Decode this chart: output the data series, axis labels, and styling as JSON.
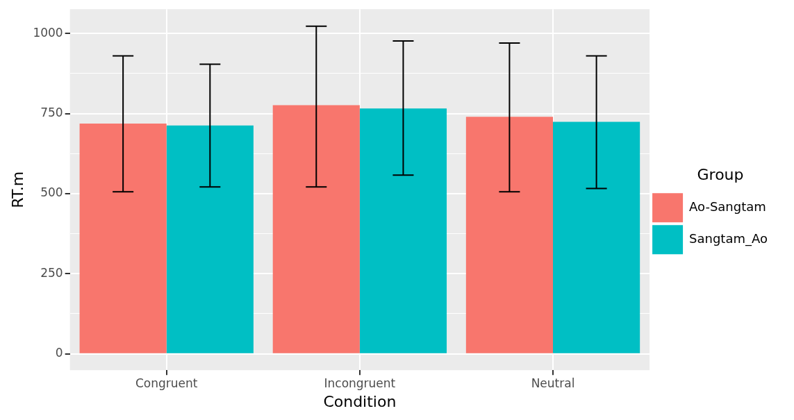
{
  "chart_data": {
    "type": "bar",
    "xlabel": "Condition",
    "ylabel": "RT.m",
    "legend_title": "Group",
    "categories": [
      "Congruent",
      "Incongruent",
      "Neutral"
    ],
    "series": [
      {
        "name": "Ao-Sangtam",
        "color": "#f8766d",
        "values": [
          719,
          776,
          740
        ],
        "errors": [
          [
            506,
            930
          ],
          [
            521,
            1023
          ],
          [
            506,
            970
          ]
        ]
      },
      {
        "name": "Sangtam_Ao",
        "color": "#00bfc4",
        "values": [
          713,
          766,
          724
        ],
        "errors": [
          [
            521,
            904
          ],
          [
            558,
            977
          ],
          [
            516,
            930
          ]
        ]
      }
    ],
    "ylim": [
      -51,
      1076
    ],
    "yticks": [
      0,
      {
        "value": 125,
        "label": null
      },
      250,
      {
        "value": 375,
        "label": null
      },
      500,
      {
        "value": 625,
        "label": null
      },
      750,
      {
        "value": 875,
        "label": null
      },
      1000
    ],
    "grid": true,
    "legend": "right"
  }
}
